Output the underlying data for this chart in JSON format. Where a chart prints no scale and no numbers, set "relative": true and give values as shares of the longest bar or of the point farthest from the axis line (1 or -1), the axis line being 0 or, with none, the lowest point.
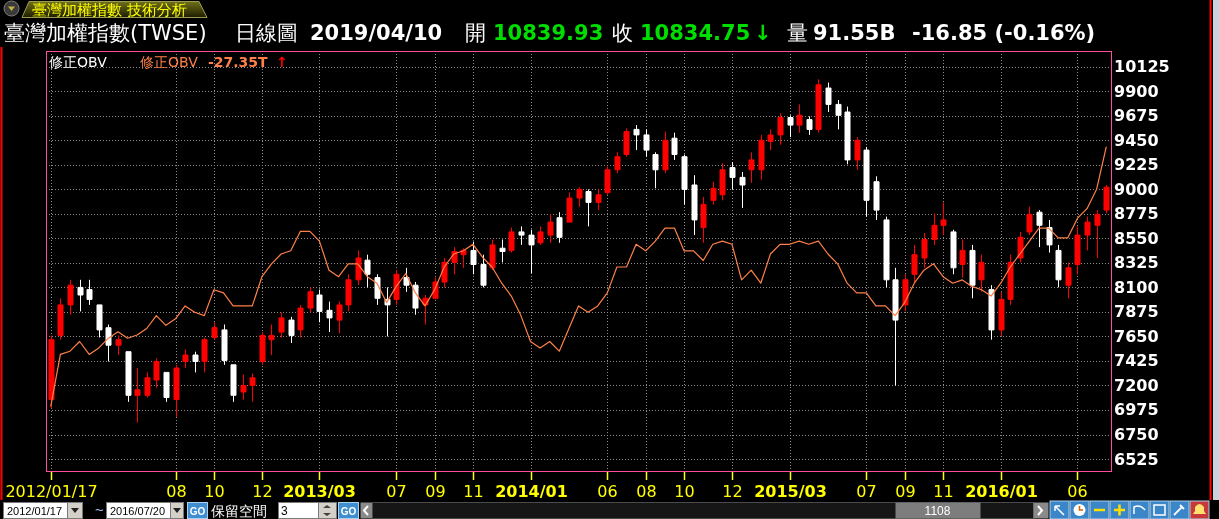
{
  "chart_data": [
    {
      "type": "candlestick",
      "title": "臺灣加權指數 技術分析",
      "subtitle": "臺灣加權指數(TWSE)",
      "categories": [
        "2012/01/17",
        null,
        null,
        null,
        null,
        null,
        null,
        null,
        null,
        null,
        null,
        null,
        null,
        "08",
        null,
        null,
        null,
        "10",
        null,
        null,
        null,
        null,
        "12",
        null,
        null,
        null,
        null,
        null,
        "2013/03",
        null,
        null,
        null,
        null,
        null,
        null,
        null,
        "07",
        null,
        null,
        null,
        "09",
        null,
        null,
        null,
        "11",
        null,
        null,
        null,
        null,
        null,
        "2014/01",
        null,
        null,
        null,
        null,
        null,
        null,
        null,
        "06",
        null,
        null,
        null,
        "08",
        null,
        null,
        null,
        "10",
        null,
        null,
        null,
        null,
        "12",
        null,
        null,
        null,
        null,
        null,
        "2015/03",
        null,
        null,
        null,
        null,
        null,
        null,
        null,
        "07",
        null,
        null,
        null,
        "09",
        null,
        null,
        null,
        "11",
        null,
        null,
        null,
        null,
        null,
        "2016/01",
        null,
        null,
        null,
        null,
        null,
        null,
        null,
        "06",
        null,
        null,
        null
      ],
      "series": [
        {
          "type": "candlestick",
          "ohlc": [
            [
              7070,
              7660,
              6990,
              7620
            ],
            [
              7660,
              8000,
              7620,
              7940
            ],
            [
              7940,
              8170,
              7850,
              8120
            ],
            [
              8100,
              8170,
              7880,
              8030
            ],
            [
              8080,
              8170,
              7940,
              7990
            ],
            [
              7940,
              7940,
              7640,
              7710
            ],
            [
              7730,
              7760,
              7420,
              7570
            ],
            [
              7570,
              7660,
              7480,
              7620
            ],
            [
              7510,
              7510,
              7050,
              7110
            ],
            [
              7110,
              7360,
              6860,
              7160
            ],
            [
              7110,
              7320,
              7090,
              7270
            ],
            [
              7250,
              7450,
              7180,
              7420
            ],
            [
              7320,
              7320,
              7050,
              7090
            ],
            [
              7070,
              7390,
              6910,
              7360
            ],
            [
              7420,
              7530,
              7360,
              7480
            ],
            [
              7480,
              7510,
              7320,
              7420
            ],
            [
              7420,
              7640,
              7320,
              7620
            ],
            [
              7640,
              7780,
              7620,
              7730
            ],
            [
              7710,
              7760,
              7390,
              7430
            ],
            [
              7390,
              7390,
              7050,
              7110
            ],
            [
              7140,
              7300,
              7070,
              7200
            ],
            [
              7200,
              7310,
              7050,
              7270
            ],
            [
              7420,
              7690,
              7390,
              7660
            ],
            [
              7620,
              7760,
              7480,
              7660
            ],
            [
              7690,
              7870,
              7640,
              7820
            ],
            [
              7800,
              7830,
              7590,
              7660
            ],
            [
              7710,
              7940,
              7640,
              7910
            ],
            [
              7910,
              8100,
              7870,
              8060
            ],
            [
              8030,
              8080,
              7780,
              7880
            ],
            [
              7890,
              7970,
              7690,
              7820
            ],
            [
              7800,
              7970,
              7680,
              7940
            ],
            [
              7940,
              8220,
              7880,
              8170
            ],
            [
              8170,
              8440,
              8120,
              8370
            ],
            [
              8350,
              8400,
              8100,
              8220
            ],
            [
              8190,
              8220,
              7940,
              8000
            ],
            [
              7990,
              8100,
              7650,
              7940
            ],
            [
              7990,
              8260,
              7940,
              8220
            ],
            [
              8190,
              8280,
              8060,
              8120
            ],
            [
              8120,
              8150,
              7850,
              7910
            ],
            [
              7940,
              8030,
              7760,
              8000
            ],
            [
              8000,
              8190,
              7990,
              8150
            ],
            [
              8150,
              8370,
              8100,
              8330
            ],
            [
              8330,
              8470,
              8220,
              8430
            ],
            [
              8400,
              8460,
              8280,
              8440
            ],
            [
              8440,
              8520,
              8220,
              8310
            ],
            [
              8310,
              8400,
              8100,
              8120
            ],
            [
              8280,
              8540,
              8260,
              8490
            ],
            [
              8460,
              8540,
              8330,
              8430
            ],
            [
              8440,
              8650,
              8420,
              8610
            ],
            [
              8610,
              8660,
              8490,
              8580
            ],
            [
              8580,
              8630,
              8230,
              8490
            ],
            [
              8510,
              8660,
              8490,
              8610
            ],
            [
              8580,
              8770,
              8510,
              8700
            ],
            [
              8740,
              8790,
              8510,
              8560
            ],
            [
              8700,
              8970,
              8700,
              8920
            ],
            [
              8920,
              9020,
              8840,
              9000
            ],
            [
              8980,
              9000,
              8660,
              8880
            ],
            [
              8880,
              9000,
              8810,
              8950
            ],
            [
              8970,
              9210,
              8950,
              9180
            ],
            [
              9180,
              9340,
              9150,
              9300
            ],
            [
              9320,
              9560,
              9300,
              9530
            ],
            [
              9550,
              9590,
              9360,
              9500
            ],
            [
              9500,
              9550,
              9300,
              9360
            ],
            [
              9320,
              9340,
              9010,
              9180
            ],
            [
              9180,
              9530,
              9150,
              9450
            ],
            [
              9470,
              9520,
              9270,
              9320
            ],
            [
              9300,
              9320,
              8860,
              9000
            ],
            [
              9040,
              9130,
              8580,
              8720
            ],
            [
              8650,
              8930,
              8510,
              8860
            ],
            [
              8900,
              9070,
              8860,
              9010
            ],
            [
              8950,
              9240,
              8900,
              9180
            ],
            [
              9200,
              9250,
              9000,
              9110
            ],
            [
              9110,
              9160,
              8830,
              9040
            ],
            [
              9180,
              9340,
              9060,
              9270
            ],
            [
              9180,
              9500,
              9090,
              9450
            ],
            [
              9440,
              9550,
              9360,
              9500
            ],
            [
              9500,
              9700,
              9410,
              9660
            ],
            [
              9660,
              9680,
              9480,
              9590
            ],
            [
              9590,
              9780,
              9520,
              9680
            ],
            [
              9640,
              9670,
              9500,
              9550
            ],
            [
              9550,
              10010,
              9520,
              9960
            ],
            [
              9930,
              9980,
              9710,
              9780
            ],
            [
              9780,
              9820,
              9550,
              9680
            ],
            [
              9710,
              9760,
              9230,
              9270
            ],
            [
              9270,
              9480,
              9180,
              9450
            ],
            [
              9360,
              9390,
              8750,
              8900
            ],
            [
              9070,
              9120,
              8720,
              8810
            ],
            [
              8720,
              8750,
              8100,
              8170
            ],
            [
              8170,
              8280,
              7200,
              7800
            ],
            [
              7940,
              8220,
              7880,
              8170
            ],
            [
              8220,
              8490,
              8150,
              8400
            ],
            [
              8370,
              8600,
              8280,
              8540
            ],
            [
              8540,
              8780,
              8490,
              8670
            ],
            [
              8670,
              8880,
              8580,
              8720
            ],
            [
              8610,
              8630,
              8220,
              8280
            ],
            [
              8310,
              8540,
              8190,
              8440
            ],
            [
              8440,
              8490,
              8000,
              8120
            ],
            [
              8170,
              8400,
              8060,
              8330
            ],
            [
              8080,
              8120,
              7620,
              7710
            ],
            [
              7710,
              8060,
              7650,
              7990
            ],
            [
              7990,
              8400,
              7940,
              8330
            ],
            [
              8370,
              8610,
              8330,
              8560
            ],
            [
              8610,
              8840,
              8580,
              8770
            ],
            [
              8790,
              8810,
              8470,
              8670
            ],
            [
              8650,
              8720,
              8420,
              8490
            ],
            [
              8440,
              8490,
              8100,
              8170
            ],
            [
              8120,
              8330,
              8000,
              8280
            ],
            [
              8310,
              8660,
              8220,
              8580
            ],
            [
              8580,
              8750,
              8440,
              8700
            ],
            [
              8670,
              8810,
              8370,
              8770
            ],
            [
              8810,
              9040,
              8780,
              9020
            ]
          ],
          "colors": [
            "#ff0000",
            "#ff0000",
            "#ff0000",
            "#ffffff",
            "#ffffff",
            "#ffffff",
            "#ffffff",
            "#ff0000",
            "#ffffff",
            "#ff0000",
            "#ff0000",
            "#ff0000",
            "#ffffff",
            "#ff0000",
            "#ff0000",
            "#ffffff",
            "#ff0000",
            "#ff0000",
            "#ffffff",
            "#ffffff",
            "#ff0000",
            "#ff0000",
            "#ff0000",
            "#ff0000",
            "#ff0000",
            "#ffffff",
            "#ff0000",
            "#ff0000",
            "#ffffff",
            "#ffffff",
            "#ff0000",
            "#ff0000",
            "#ff0000",
            "#ffffff",
            "#ffffff",
            "#ffffff",
            "#ff0000",
            "#ffffff",
            "#ffffff",
            "#ff0000",
            "#ff0000",
            "#ff0000",
            "#ff0000",
            "#ff0000",
            "#ffffff",
            "#ffffff",
            "#ff0000",
            "#ffffff",
            "#ff0000",
            "#ffffff",
            "#ffffff",
            "#ff0000",
            "#ff0000",
            "#ffffff",
            "#ff0000",
            "#ff0000",
            "#ffffff",
            "#ff0000",
            "#ff0000",
            "#ff0000",
            "#ff0000",
            "#ffffff",
            "#ffffff",
            "#ffffff",
            "#ff0000",
            "#ffffff",
            "#ffffff",
            "#ffffff",
            "#ff0000",
            "#ff0000",
            "#ff0000",
            "#ffffff",
            "#ffffff",
            "#ff0000",
            "#ff0000",
            "#ff0000",
            "#ff0000",
            "#ffffff",
            "#ff0000",
            "#ffffff",
            "#ff0000",
            "#ffffff",
            "#ffffff",
            "#ffffff",
            "#ff0000",
            "#ffffff",
            "#ffffff",
            "#ffffff",
            "#ffffff",
            "#ff0000",
            "#ff0000",
            "#ff0000",
            "#ff0000",
            "#ff0000",
            "#ffffff",
            "#ff0000",
            "#ffffff",
            "#ff0000",
            "#ffffff",
            "#ff0000",
            "#ff0000",
            "#ff0000",
            "#ff0000",
            "#ffffff",
            "#ffffff",
            "#ffffff",
            "#ff0000",
            "#ff0000",
            "#ff0000",
            "#ff0000",
            "#ff0000"
          ]
        }
      ],
      "ylim": [
        6415,
        10270
      ],
      "yticks": [
        6525,
        6750,
        6975,
        7200,
        7425,
        7650,
        7875,
        8100,
        8325,
        8550,
        8775,
        9000,
        9225,
        9450,
        9675,
        9900,
        10125
      ],
      "grid": true,
      "annotations": [
        "日線圖",
        "2019/04/10",
        "開",
        "10839.93",
        "收",
        "10834.75",
        "↓",
        "量",
        "91.55B",
        "-16.85 (-0.16%)",
        "2012/01/17",
        "~",
        "2016/07/20",
        "GO",
        "保留空間",
        "3",
        "GO",
        "1108"
      ]
    },
    {
      "type": "line",
      "relative": true,
      "categories": [
        null,
        null,
        null,
        null,
        null,
        null,
        null,
        null,
        null,
        null,
        null,
        null,
        null,
        null,
        null,
        null,
        null,
        null,
        null,
        null,
        null,
        null,
        null,
        null,
        null,
        null,
        null,
        null,
        null,
        null,
        null,
        null,
        null,
        null,
        null,
        null,
        null,
        null,
        null,
        null,
        null,
        null,
        null,
        null,
        null,
        null,
        null,
        null,
        null,
        null,
        null,
        null,
        null,
        null,
        null,
        null,
        null,
        null,
        null,
        null,
        null,
        null,
        null,
        null,
        null,
        null,
        null,
        null,
        null,
        null,
        null,
        null,
        null,
        null,
        null,
        null,
        null,
        null,
        null,
        null,
        null,
        null,
        null,
        null,
        null,
        null,
        null,
        null,
        null,
        null,
        null,
        null,
        null,
        null,
        null,
        null,
        null,
        null,
        null,
        null,
        null,
        null,
        null,
        null,
        null,
        null,
        null,
        null,
        null,
        null,
        null
      ],
      "series": [
        {
          "name": "修正OBV",
          "color": "#ff8048",
          "values": [
            0.2,
            0.36,
            0.37,
            0.4,
            0.36,
            0.38,
            0.41,
            0.43,
            0.41,
            0.42,
            0.44,
            0.48,
            0.45,
            0.47,
            0.51,
            0.49,
            0.48,
            0.56,
            0.55,
            0.51,
            0.51,
            0.51,
            0.6,
            0.64,
            0.67,
            0.68,
            0.74,
            0.74,
            0.71,
            0.62,
            0.6,
            0.64,
            0.64,
            0.6,
            0.58,
            0.52,
            0.57,
            0.61,
            0.55,
            0.51,
            0.56,
            0.63,
            0.67,
            0.68,
            0.7,
            0.66,
            0.63,
            0.58,
            0.54,
            0.48,
            0.4,
            0.38,
            0.4,
            0.37,
            0.44,
            0.51,
            0.49,
            0.51,
            0.55,
            0.63,
            0.63,
            0.7,
            0.68,
            0.71,
            0.75,
            0.75,
            0.68,
            0.68,
            0.65,
            0.7,
            0.71,
            0.7,
            0.59,
            0.62,
            0.58,
            0.67,
            0.7,
            0.7,
            0.71,
            0.7,
            0.71,
            0.67,
            0.64,
            0.58,
            0.55,
            0.55,
            0.51,
            0.51,
            0.48,
            0.52,
            0.58,
            0.62,
            0.64,
            0.6,
            0.58,
            0.59,
            0.57,
            0.56,
            0.54,
            0.58,
            0.63,
            0.67,
            0.71,
            0.75,
            0.75,
            0.72,
            0.72,
            0.78,
            0.81,
            0.87,
            1
          ]
        }
      ],
      "annotations": [
        "修正OBV",
        "-27.35T",
        "↑"
      ]
    }
  ]
}
